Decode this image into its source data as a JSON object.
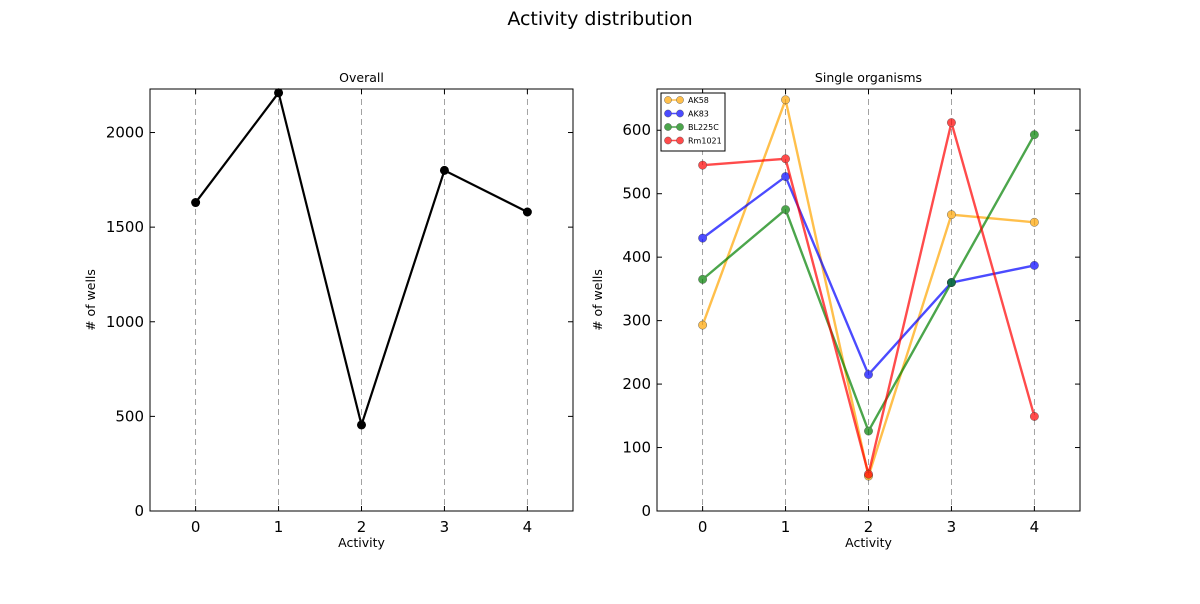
{
  "figure": {
    "title": "Activity distribution"
  },
  "chart_data": [
    {
      "type": "line",
      "title": "Overall",
      "xlabel": "Activity",
      "ylabel": "# of wells",
      "x": [
        0,
        1,
        2,
        3,
        4
      ],
      "xlim": [
        -0.55,
        4.55
      ],
      "ylim": [
        0,
        2230
      ],
      "xticks": [
        "0",
        "1",
        "2",
        "3",
        "4"
      ],
      "yticks": [
        "0",
        "500",
        "1000",
        "1500",
        "2000"
      ],
      "vertical_grid": true,
      "grid_style": "dashed",
      "series": [
        {
          "values": [
            1630,
            2210,
            455,
            1800,
            1580
          ],
          "color": "#000000"
        }
      ]
    },
    {
      "type": "line",
      "title": "Single organisms",
      "xlabel": "Activity",
      "ylabel": "# of wells",
      "x": [
        0,
        1,
        2,
        3,
        4
      ],
      "xlim": [
        -0.55,
        4.55
      ],
      "ylim": [
        0,
        665
      ],
      "xticks": [
        "0",
        "1",
        "2",
        "3",
        "4"
      ],
      "yticks": [
        "0",
        "100",
        "200",
        "300",
        "400",
        "500",
        "600"
      ],
      "vertical_grid": true,
      "grid_style": "dashed",
      "legend": "top-left",
      "series": [
        {
          "name": "AK58",
          "values": [
            293,
            648,
            55,
            467,
            455
          ],
          "color": "#ffa500"
        },
        {
          "name": "AK83",
          "values": [
            430,
            527,
            215,
            360,
            387
          ],
          "color": "#0000ff"
        },
        {
          "name": "BL225C",
          "values": [
            365,
            475,
            126,
            360,
            593
          ],
          "color": "#008000"
        },
        {
          "name": "Rm1021",
          "values": [
            545,
            555,
            58,
            612,
            149
          ],
          "color": "#ff0000"
        }
      ]
    }
  ]
}
